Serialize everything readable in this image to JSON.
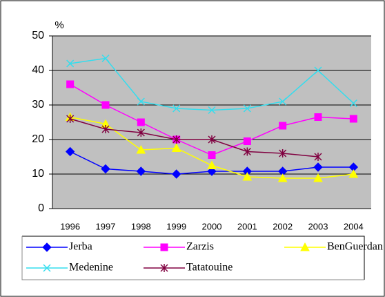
{
  "chart_data": {
    "type": "line",
    "y_label": "%",
    "categories": [
      "1996",
      "1997",
      "1998",
      "1999",
      "2000",
      "2001",
      "2002",
      "2003",
      "2004"
    ],
    "ylim": [
      0,
      50
    ],
    "yticks": [
      0,
      10,
      20,
      30,
      40,
      50
    ],
    "grid": true,
    "series": [
      {
        "name": "Jerba",
        "color": "#0000ff",
        "marker": "diamond",
        "values": [
          16.5,
          11.5,
          10.8,
          10,
          10.8,
          10.8,
          10.8,
          12,
          12
        ]
      },
      {
        "name": "Zarzis",
        "color": "#ff00ff",
        "marker": "square",
        "values": [
          36,
          30,
          25,
          20,
          15.5,
          19.5,
          24,
          26.5,
          26
        ]
      },
      {
        "name": "BenGuerdan",
        "color": "#ffff00",
        "marker": "triangle",
        "values": [
          26.5,
          24.5,
          17,
          17.5,
          12.5,
          9.2,
          8.8,
          8.8,
          10
        ]
      },
      {
        "name": "Medenine",
        "color": "#33ddee",
        "marker": "x",
        "values": [
          42,
          43.5,
          31,
          29,
          28.5,
          29,
          31,
          40,
          30.5
        ]
      },
      {
        "name": "Tatatouine",
        "color": "#800040",
        "marker": "asterisk",
        "values": [
          26,
          23,
          22,
          20,
          20,
          16.5,
          16,
          15,
          null
        ]
      }
    ]
  }
}
